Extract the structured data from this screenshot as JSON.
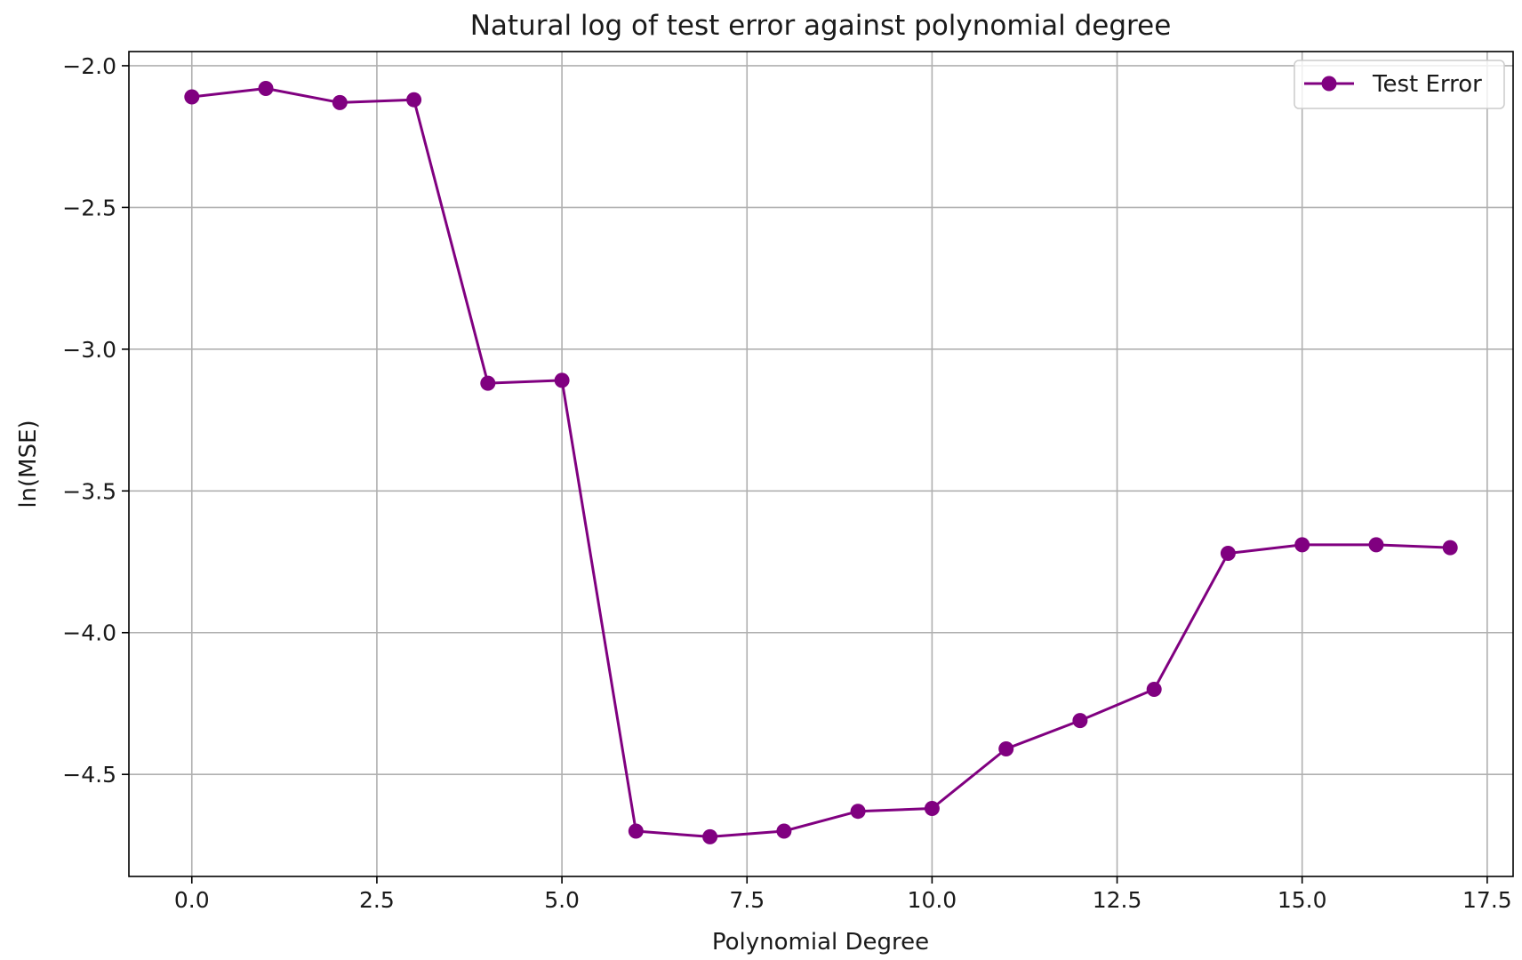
{
  "chart_data": {
    "type": "line",
    "title": "Natural log of test error against polynomial degree",
    "xlabel": "Polynomial Degree",
    "ylabel": "ln(MSE)",
    "xlim": [
      -0.85,
      17.85
    ],
    "ylim": [
      -4.86,
      -1.95
    ],
    "xticks": [
      0.0,
      2.5,
      5.0,
      7.5,
      10.0,
      12.5,
      15.0,
      17.5
    ],
    "xtick_labels": [
      "0.0",
      "2.5",
      "5.0",
      "7.5",
      "10.0",
      "12.5",
      "15.0",
      "17.5"
    ],
    "yticks": [
      -2.0,
      -2.5,
      -3.0,
      -3.5,
      -4.0,
      -4.5
    ],
    "ytick_labels": [
      "−2.0",
      "−2.5",
      "−3.0",
      "−3.5",
      "−4.0",
      "−4.5"
    ],
    "grid": true,
    "legend_position": "top-right",
    "series": [
      {
        "name": "Test Error",
        "color": "#800080",
        "marker": "circle",
        "x": [
          0,
          1,
          2,
          3,
          4,
          5,
          6,
          7,
          8,
          9,
          10,
          11,
          12,
          13,
          14,
          15,
          16,
          17
        ],
        "y": [
          -2.11,
          -2.08,
          -2.13,
          -2.12,
          -3.12,
          -3.11,
          -4.7,
          -4.72,
          -4.7,
          -4.63,
          -4.62,
          -4.41,
          -4.31,
          -4.2,
          -3.72,
          -3.69,
          -3.69,
          -3.7
        ]
      }
    ]
  }
}
